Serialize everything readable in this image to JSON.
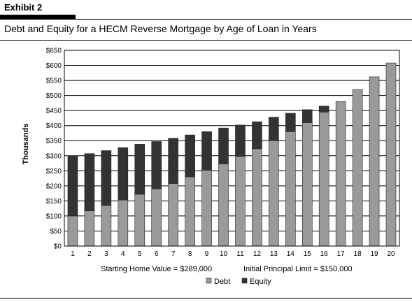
{
  "exhibit": "Exhibit 2",
  "chart_data": {
    "type": "bar",
    "stacked": true,
    "title": "Debt and Equity for a HECM Reverse Mortgage by Age of Loan in Years",
    "xlabel": "",
    "ylabel": "Thousands",
    "categories": [
      "1",
      "2",
      "3",
      "4",
      "5",
      "6",
      "7",
      "8",
      "9",
      "10",
      "11",
      "12",
      "13",
      "14",
      "15",
      "16",
      "17",
      "18",
      "19",
      "20"
    ],
    "series": [
      {
        "name": "Debt",
        "color": "#9a9a9a",
        "values": [
          100,
          117,
          135,
          153,
          172,
          190,
          208,
          230,
          252,
          273,
          298,
          323,
          350,
          380,
          410,
          445,
          480,
          520,
          562,
          608
        ]
      },
      {
        "name": "Equity",
        "color": "#333333",
        "values": [
          200,
          190,
          182,
          174,
          166,
          157,
          150,
          139,
          128,
          119,
          104,
          90,
          78,
          61,
          43,
          20,
          0,
          0,
          0,
          0
        ]
      }
    ],
    "ylim": [
      0,
      650
    ],
    "yticks": [
      "$0",
      "$50",
      "$100",
      "$150",
      "$200",
      "$250",
      "$300",
      "$350",
      "$400",
      "$450",
      "$500",
      "$550",
      "$600",
      "$650"
    ],
    "grid": true,
    "legend_position": "bottom",
    "annotations": [
      "Starting Home Value = $289,000",
      "Initial Principal Limit = $150,000"
    ]
  }
}
